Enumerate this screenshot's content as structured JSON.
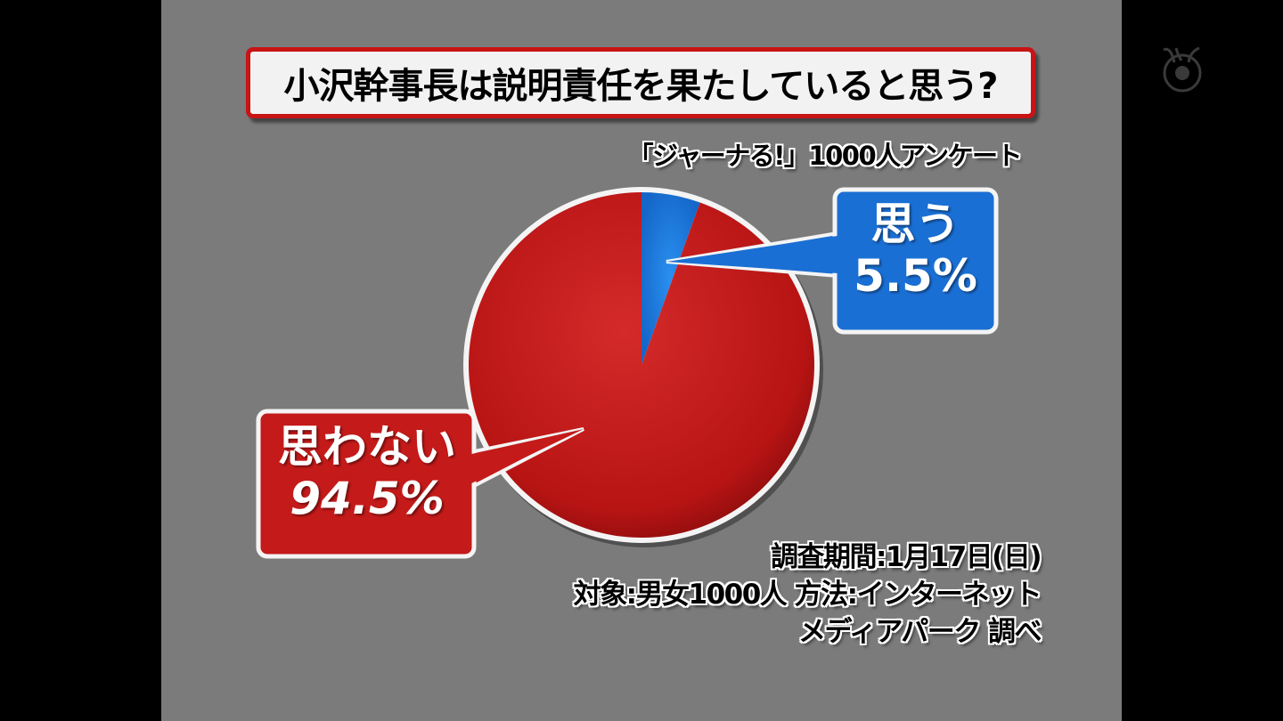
{
  "title": "小沢幹事長は説明責任を果たしていると思う?",
  "subtitle": "「ジャーナる!」1000人アンケート",
  "info": {
    "period": "調査期間:1月17日(日)",
    "target_method": "対象:男女1000人 方法:インターネット",
    "source": "メディアパーク 調べ"
  },
  "logo": "broadcaster-eye-logo",
  "chart_data": {
    "type": "pie",
    "title": "小沢幹事長は説明責任を果たしていると思う?",
    "start": "12 o'clock, clockwise",
    "slices": [
      {
        "label": "思う",
        "value": 5.5,
        "value_label": "5.5%",
        "color": "#1f7be0"
      },
      {
        "label": "思わない",
        "value": 94.5,
        "value_label": "94.5%",
        "color": "#c41a1a"
      }
    ]
  }
}
